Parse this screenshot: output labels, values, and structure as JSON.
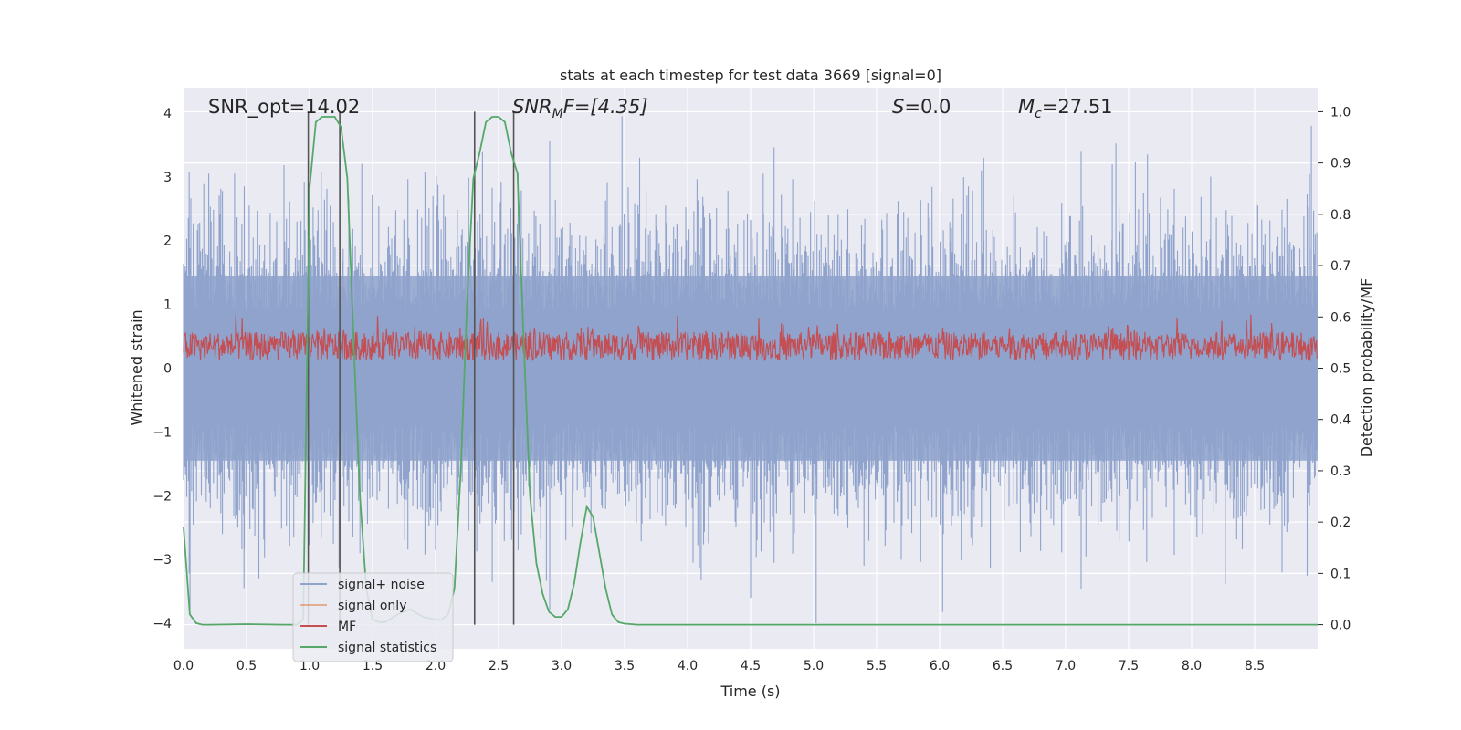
{
  "chart_data": {
    "type": "line",
    "title": "stats at each timestep for test data 3669 [signal=0]",
    "xlabel": "Time (s)",
    "ylabel": "Whitened strain",
    "y2label": "Detection probability/MF",
    "xlim": [
      0.0,
      9.0
    ],
    "ylim": [
      -4.4,
      4.4
    ],
    "y2lim": [
      -0.047,
      1.047
    ],
    "xticks": [
      0.0,
      0.5,
      1.0,
      1.5,
      2.0,
      2.5,
      3.0,
      3.5,
      4.0,
      4.5,
      5.0,
      5.5,
      6.0,
      6.5,
      7.0,
      7.5,
      8.0,
      8.5
    ],
    "xtick_labels": [
      "0.0",
      "0.5",
      "1.0",
      "1.5",
      "2.0",
      "2.5",
      "3.0",
      "3.5",
      "4.0",
      "4.5",
      "5.0",
      "5.5",
      "6.0",
      "6.5",
      "7.0",
      "7.5",
      "8.0",
      "8.5"
    ],
    "yticks": [
      4,
      3,
      2,
      1,
      0,
      -1,
      -2,
      -3,
      -4
    ],
    "ytick_labels": [
      "4",
      "3",
      "2",
      "1",
      "0",
      "−1",
      "−2",
      "−3",
      "−4"
    ],
    "y2ticks": [
      1.0,
      0.9,
      0.8,
      0.7,
      0.6,
      0.5,
      0.4,
      0.3,
      0.2,
      0.1,
      0.0
    ],
    "y2tick_labels": [
      "1.0",
      "0.9",
      "0.8",
      "0.7",
      "0.6",
      "0.5",
      "0.4",
      "0.3",
      "0.2",
      "0.1",
      "0.0"
    ],
    "annotations": {
      "snr_opt": "SNR_opt=14.02",
      "snr_mf_base": "SNR",
      "snr_mf_sub": "M",
      "snr_mf_rest": "F=[4.35]",
      "s_base": "S",
      "s_rest": "=0.0",
      "mc_base": "M",
      "mc_sub": "c",
      "mc_rest": "=27.51"
    },
    "vlines_x": [
      0.99,
      1.24,
      2.31,
      2.62
    ],
    "series": [
      {
        "name": "signal+ noise",
        "color": "#8fa3cc",
        "description": "whitened strain noise, amplitude within about ±3.9",
        "sample_peaks": [
          {
            "x": 0.2,
            "y": 3.05
          },
          {
            "x": 0.48,
            "y": -3.45
          },
          {
            "x": 1.4,
            "y": -2.9
          },
          {
            "x": 2.0,
            "y": -2.85
          },
          {
            "x": 2.45,
            "y": -3.35
          },
          {
            "x": 3.48,
            "y": 3.95
          },
          {
            "x": 4.5,
            "y": -3.6
          },
          {
            "x": 4.6,
            "y": 3.05
          },
          {
            "x": 5.02,
            "y": -4.0
          },
          {
            "x": 6.35,
            "y": 3.3
          },
          {
            "x": 7.37,
            "y": 3.2
          },
          {
            "x": 7.65,
            "y": 3.35
          },
          {
            "x": 8.95,
            "y": 3.8
          }
        ]
      },
      {
        "name": "signal only",
        "color": "#dd8452",
        "values": []
      },
      {
        "name": "MF",
        "color": "#c44e52",
        "description": "matched-filter output, mostly between about 0.1 and 0.8 on the strain axis"
      },
      {
        "name": "signal statistics",
        "color": "#55a868",
        "axis": "right",
        "x": [
          0.0,
          0.05,
          0.1,
          0.15,
          0.2,
          0.5,
          0.8,
          0.9,
          0.95,
          1.0,
          1.05,
          1.1,
          1.15,
          1.2,
          1.25,
          1.3,
          1.35,
          1.4,
          1.45,
          1.5,
          1.55,
          1.6,
          1.7,
          1.8,
          1.9,
          2.0,
          2.05,
          2.1,
          2.15,
          2.2,
          2.25,
          2.3,
          2.35,
          2.4,
          2.45,
          2.5,
          2.55,
          2.6,
          2.65,
          2.7,
          2.75,
          2.8,
          2.85,
          2.9,
          2.95,
          3.0,
          3.05,
          3.1,
          3.15,
          3.2,
          3.25,
          3.3,
          3.35,
          3.4,
          3.45,
          3.5,
          3.55,
          3.6,
          4.0,
          5.0,
          6.0,
          7.0,
          8.0,
          9.0
        ],
        "values": [
          0.19,
          0.02,
          0.003,
          0.0,
          0.0,
          0.001,
          0.0,
          0.0,
          0.01,
          0.85,
          0.98,
          0.99,
          0.99,
          0.99,
          0.97,
          0.87,
          0.55,
          0.25,
          0.07,
          0.01,
          0.005,
          0.005,
          0.02,
          0.03,
          0.015,
          0.01,
          0.01,
          0.02,
          0.07,
          0.3,
          0.63,
          0.87,
          0.92,
          0.98,
          0.99,
          0.99,
          0.98,
          0.92,
          0.88,
          0.55,
          0.25,
          0.12,
          0.06,
          0.025,
          0.015,
          0.015,
          0.03,
          0.08,
          0.16,
          0.23,
          0.21,
          0.14,
          0.07,
          0.02,
          0.005,
          0.002,
          0.001,
          0.0,
          0.0,
          0.0,
          0.0,
          0.0,
          0.0,
          0.0
        ]
      }
    ],
    "legend_location": "lower-left"
  },
  "colors": {
    "plot_bg": "#eaeaf2",
    "grid": "#ffffff",
    "vline": "#555555"
  }
}
